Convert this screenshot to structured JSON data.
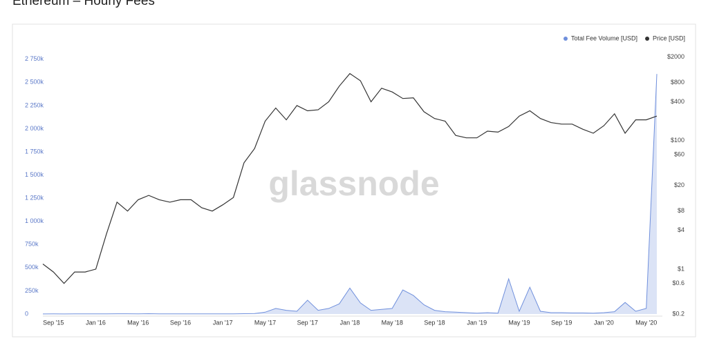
{
  "chart_data": {
    "type": "line",
    "title": "Ethereum – Hourly Fees",
    "watermark": "glassnode",
    "x": [
      "2015-08",
      "2015-09",
      "2015-10",
      "2015-11",
      "2015-12",
      "2016-01",
      "2016-02",
      "2016-03",
      "2016-04",
      "2016-05",
      "2016-06",
      "2016-07",
      "2016-08",
      "2016-09",
      "2016-10",
      "2016-11",
      "2016-12",
      "2017-01",
      "2017-02",
      "2017-03",
      "2017-04",
      "2017-05",
      "2017-06",
      "2017-07",
      "2017-08",
      "2017-09",
      "2017-10",
      "2017-11",
      "2017-12",
      "2018-01",
      "2018-02",
      "2018-03",
      "2018-04",
      "2018-05",
      "2018-06",
      "2018-07",
      "2018-08",
      "2018-09",
      "2018-10",
      "2018-11",
      "2018-12",
      "2019-01",
      "2019-02",
      "2019-03",
      "2019-04",
      "2019-05",
      "2019-06",
      "2019-07",
      "2019-08",
      "2019-09",
      "2019-10",
      "2019-11",
      "2019-12",
      "2020-01",
      "2020-02",
      "2020-03",
      "2020-04",
      "2020-05",
      "2020-06"
    ],
    "xlim": [
      "2015-08",
      "2020-06"
    ],
    "xticks": [
      {
        "value": "2015-09",
        "label": "Sep '15"
      },
      {
        "value": "2016-01",
        "label": "Jan '16"
      },
      {
        "value": "2016-05",
        "label": "May '16"
      },
      {
        "value": "2016-09",
        "label": "Sep '16"
      },
      {
        "value": "2017-01",
        "label": "Jan '17"
      },
      {
        "value": "2017-05",
        "label": "May '17"
      },
      {
        "value": "2017-09",
        "label": "Sep '17"
      },
      {
        "value": "2018-01",
        "label": "Jan '18"
      },
      {
        "value": "2018-05",
        "label": "May '18"
      },
      {
        "value": "2018-09",
        "label": "Sep '18"
      },
      {
        "value": "2019-01",
        "label": "Jan '19"
      },
      {
        "value": "2019-05",
        "label": "May '19"
      },
      {
        "value": "2019-09",
        "label": "Sep '19"
      },
      {
        "value": "2020-01",
        "label": "Jan '20"
      },
      {
        "value": "2020-05",
        "label": "May '20"
      }
    ],
    "ylim": [
      0,
      2830000
    ],
    "yticks": [
      0,
      {
        "value": 250000,
        "label": "250k"
      },
      {
        "value": 500000,
        "label": "500k"
      },
      {
        "value": 750000,
        "label": "750k"
      },
      {
        "value": 1000000,
        "label": "1 000k"
      },
      {
        "value": 1250000,
        "label": "1 250k"
      },
      {
        "value": 1500000,
        "label": "1 500k"
      },
      {
        "value": 1750000,
        "label": "1 750k"
      },
      {
        "value": 2000000,
        "label": "2 000k"
      },
      {
        "value": 2250000,
        "label": "2 250k"
      },
      {
        "value": 2500000,
        "label": "2 500k"
      },
      {
        "value": 2750000,
        "label": "2 750k"
      }
    ],
    "y2lim": [
      0.2,
      2400
    ],
    "y2_log": true,
    "y2ticks": [
      {
        "value": 0.2,
        "label": "$0.2"
      },
      {
        "value": 0.6,
        "label": "$0.6"
      },
      {
        "value": 1,
        "label": "$1"
      },
      {
        "value": 4,
        "label": "$4"
      },
      {
        "value": 8,
        "label": "$8"
      },
      {
        "value": 20,
        "label": "$20"
      },
      {
        "value": 60,
        "label": "$60"
      },
      {
        "value": 100,
        "label": "$100"
      },
      {
        "value": 400,
        "label": "$400"
      },
      {
        "value": 800,
        "label": "$800"
      },
      {
        "value": 2000,
        "label": "$2000"
      }
    ],
    "legend": "top-right",
    "series": [
      {
        "name": "Total Fee Volume [USD]",
        "color": "#6f8fdc",
        "area": true,
        "values": [
          1000,
          1500,
          1000,
          1200,
          1500,
          2000,
          2500,
          3000,
          3000,
          2500,
          4000,
          2000,
          1500,
          2500,
          2000,
          1500,
          1500,
          2000,
          2500,
          4000,
          5000,
          20000,
          60000,
          40000,
          30000,
          150000,
          40000,
          60000,
          110000,
          280000,
          120000,
          40000,
          50000,
          60000,
          260000,
          200000,
          100000,
          40000,
          25000,
          20000,
          15000,
          10000,
          15000,
          10000,
          380000,
          30000,
          290000,
          30000,
          15000,
          15000,
          12000,
          12000,
          10000,
          15000,
          25000,
          125000,
          30000,
          60000,
          2590000
        ]
      },
      {
        "name": "Price [USD]",
        "color": "#333333",
        "axis": "y2",
        "values": [
          1.2,
          0.9,
          0.6,
          0.9,
          0.9,
          1.0,
          3.5,
          11,
          8,
          12,
          14,
          12,
          11,
          12,
          12,
          9,
          8,
          10,
          13,
          45,
          75,
          200,
          320,
          210,
          350,
          290,
          300,
          400,
          700,
          1100,
          850,
          400,
          650,
          570,
          450,
          460,
          280,
          220,
          200,
          120,
          110,
          110,
          140,
          135,
          165,
          240,
          290,
          220,
          190,
          180,
          180,
          150,
          130,
          170,
          260,
          130,
          210,
          210,
          240
        ]
      }
    ]
  }
}
